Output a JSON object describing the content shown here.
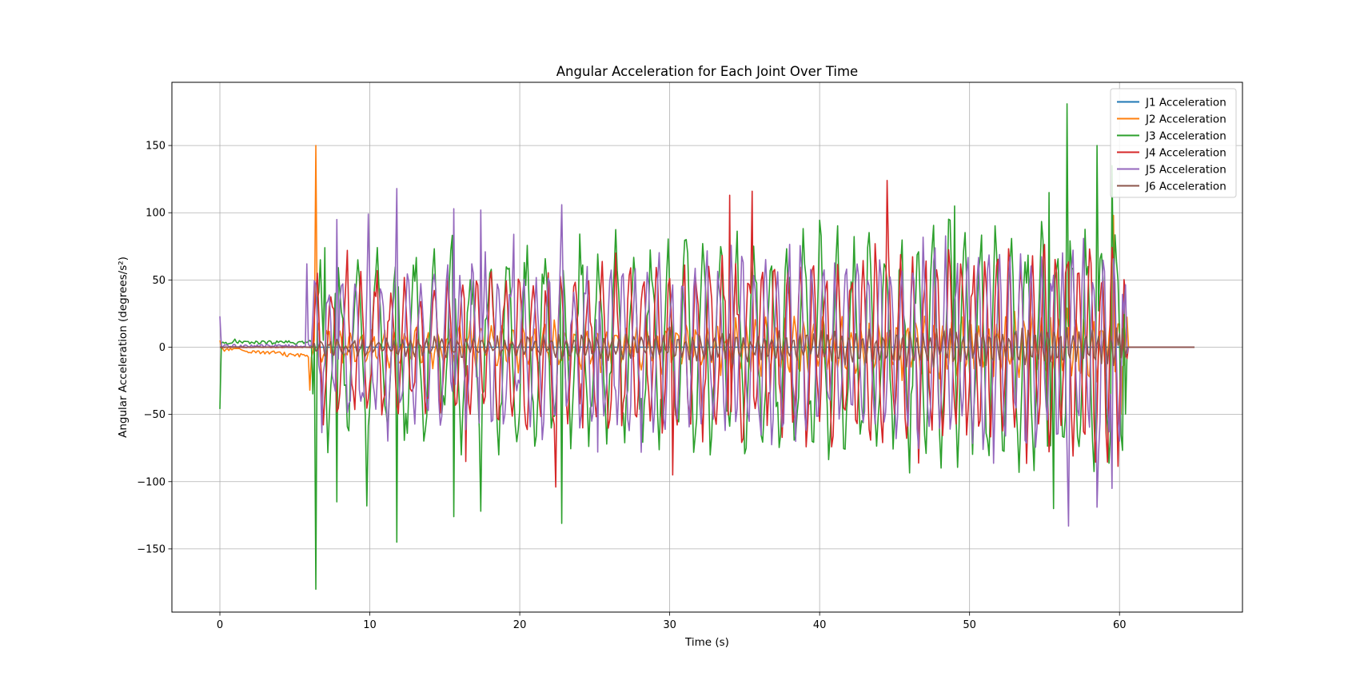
{
  "chart_data": {
    "type": "line",
    "title": "Angular Acceleration for Each Joint Over Time",
    "xlabel": "Time (s)",
    "ylabel": "Angular Acceleration (degrees/s²)",
    "xlim": [
      -3.2,
      68.2
    ],
    "ylim": [
      -197,
      197
    ],
    "xticks": [
      0,
      10,
      20,
      30,
      40,
      50,
      60
    ],
    "yticks": [
      -150,
      -100,
      -50,
      0,
      50,
      100,
      150
    ],
    "xtick_labels": [
      "0",
      "10",
      "20",
      "30",
      "40",
      "50",
      "60"
    ],
    "ytick_labels": [
      "−150",
      "−100",
      "−50",
      "0",
      "50",
      "100",
      "150"
    ],
    "grid": true,
    "legend_position": "top-right",
    "sampling": {
      "time_step_s": 0.1,
      "duration_s": 65,
      "start_of_motion_s": 6.2,
      "end_of_motion_s": 60.5
    },
    "series": [
      {
        "name": "J1 Acceleration",
        "color": "#1f77b4",
        "key_points": [
          [
            0,
            0
          ],
          [
            6.0,
            0
          ],
          [
            60.5,
            0
          ],
          [
            65,
            0
          ]
        ]
      },
      {
        "name": "J2 Acceleration",
        "color": "#ff7f0e",
        "key_points": [
          [
            0,
            5
          ],
          [
            0.3,
            -3
          ],
          [
            3.0,
            -5
          ],
          [
            4.5,
            -7
          ],
          [
            6.0,
            -32
          ],
          [
            6.4,
            150
          ],
          [
            6.6,
            18
          ],
          [
            30,
            12
          ],
          [
            59.6,
            98
          ],
          [
            60.1,
            -50
          ],
          [
            60.6,
            0
          ],
          [
            65,
            0
          ]
        ]
      },
      {
        "name": "J3 Acceleration",
        "color": "#2ca02c",
        "key_points": [
          [
            0,
            -46
          ],
          [
            0.1,
            3
          ],
          [
            1.0,
            6
          ],
          [
            3.0,
            4
          ],
          [
            6.0,
            5
          ],
          [
            6.4,
            -180
          ],
          [
            7.0,
            74
          ],
          [
            7.8,
            -115
          ],
          [
            9.8,
            -118
          ],
          [
            11.8,
            -145
          ],
          [
            15.6,
            -126
          ],
          [
            17.4,
            -122
          ],
          [
            22.8,
            -131
          ],
          [
            49.0,
            105
          ],
          [
            55.3,
            115
          ],
          [
            55.6,
            -120
          ],
          [
            56.5,
            181
          ],
          [
            58.5,
            150
          ],
          [
            59.5,
            135
          ],
          [
            60.3,
            42
          ],
          [
            61,
            0
          ],
          [
            65,
            0
          ]
        ]
      },
      {
        "name": "J4 Acceleration",
        "color": "#d62728",
        "key_points": [
          [
            0,
            0
          ],
          [
            6.2,
            0
          ],
          [
            6.5,
            55
          ],
          [
            8.5,
            72
          ],
          [
            10.5,
            57
          ],
          [
            16.4,
            -85
          ],
          [
            22.4,
            -104
          ],
          [
            30.2,
            -95
          ],
          [
            34.0,
            113
          ],
          [
            35.5,
            116
          ],
          [
            44.5,
            124
          ],
          [
            54.2,
            68
          ],
          [
            60.2,
            0
          ],
          [
            65,
            0
          ]
        ]
      },
      {
        "name": "J5 Acceleration",
        "color": "#9467bd",
        "key_points": [
          [
            0,
            23
          ],
          [
            0.2,
            0
          ],
          [
            5.8,
            62
          ],
          [
            7.8,
            95
          ],
          [
            9.9,
            99
          ],
          [
            11.8,
            118
          ],
          [
            15.6,
            103
          ],
          [
            17.4,
            102
          ],
          [
            19.6,
            84
          ],
          [
            22.8,
            106
          ],
          [
            25.2,
            -78
          ],
          [
            56.6,
            -133
          ],
          [
            58.5,
            -119
          ],
          [
            59.5,
            -105
          ],
          [
            60.3,
            25
          ],
          [
            61,
            0
          ],
          [
            65,
            0
          ]
        ]
      },
      {
        "name": "J6 Acceleration",
        "color": "#8c564b",
        "key_points": [
          [
            0,
            0
          ],
          [
            6.2,
            0
          ],
          [
            30,
            15
          ],
          [
            50,
            20
          ],
          [
            60,
            10
          ],
          [
            60.5,
            0
          ],
          [
            65,
            0
          ]
        ]
      }
    ]
  }
}
